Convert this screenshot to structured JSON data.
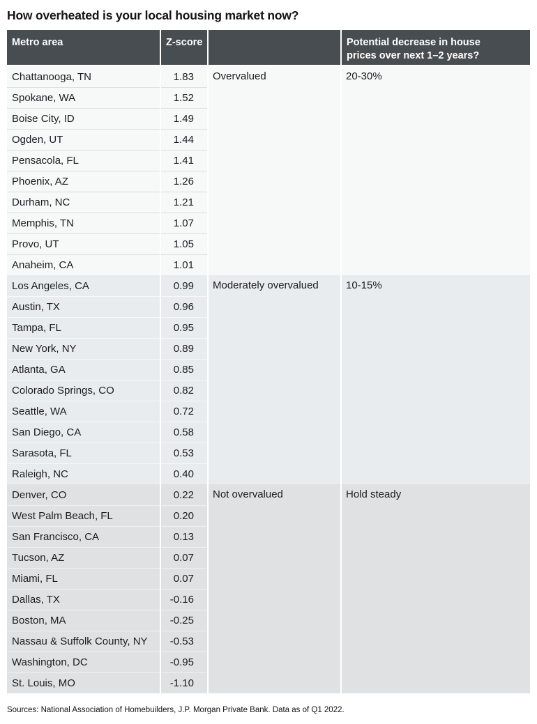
{
  "colors": {
    "header_bg": "#484d52",
    "header_text": "#ffffff",
    "body_text": "#1a1c1e",
    "section_backgrounds": [
      "#f7f8f8",
      "#e8ecee",
      "#e0e1e2"
    ]
  },
  "chart_data": {
    "type": "table",
    "title": "How overheated is your local housing market now?",
    "headers": [
      "Metro area",
      "Z-score",
      "",
      "Potential decrease in house prices over next 1–2 years?"
    ],
    "groups": [
      {
        "valuation": "Overvalued",
        "potential_decrease": "20-30%",
        "rows": [
          {
            "metro": "Chattanooga, TN",
            "zscore": "1.83"
          },
          {
            "metro": "Spokane, WA",
            "zscore": "1.52"
          },
          {
            "metro": "Boise City, ID",
            "zscore": "1.49"
          },
          {
            "metro": "Ogden, UT",
            "zscore": "1.44"
          },
          {
            "metro": "Pensacola, FL",
            "zscore": "1.41"
          },
          {
            "metro": "Phoenix, AZ",
            "zscore": "1.26"
          },
          {
            "metro": "Durham, NC",
            "zscore": "1.21"
          },
          {
            "metro": "Memphis, TN",
            "zscore": "1.07"
          },
          {
            "metro": "Provo, UT",
            "zscore": "1.05"
          },
          {
            "metro": "Anaheim, CA",
            "zscore": "1.01"
          }
        ]
      },
      {
        "valuation": "Moderately overvalued",
        "potential_decrease": "10-15%",
        "rows": [
          {
            "metro": "Los Angeles, CA",
            "zscore": "0.99"
          },
          {
            "metro": "Austin, TX",
            "zscore": "0.96"
          },
          {
            "metro": "Tampa, FL",
            "zscore": "0.95"
          },
          {
            "metro": "New York, NY",
            "zscore": "0.89"
          },
          {
            "metro": "Atlanta, GA",
            "zscore": "0.85"
          },
          {
            "metro": "Colorado Springs, CO",
            "zscore": "0.82"
          },
          {
            "metro": "Seattle, WA",
            "zscore": "0.72"
          },
          {
            "metro": "San Diego, CA",
            "zscore": "0.58"
          },
          {
            "metro": "Sarasota, FL",
            "zscore": "0.53"
          },
          {
            "metro": "Raleigh, NC",
            "zscore": "0.40"
          }
        ]
      },
      {
        "valuation": "Not overvalued",
        "potential_decrease": "Hold steady",
        "rows": [
          {
            "metro": "Denver, CO",
            "zscore": "0.22"
          },
          {
            "metro": "West Palm Beach, FL",
            "zscore": "0.20"
          },
          {
            "metro": "San Francisco, CA",
            "zscore": "0.13"
          },
          {
            "metro": "Tucson, AZ",
            "zscore": "0.07"
          },
          {
            "metro": "Miami, FL",
            "zscore": "0.07"
          },
          {
            "metro": "Dallas, TX",
            "zscore": "-0.16"
          },
          {
            "metro": "Boston, MA",
            "zscore": "-0.25"
          },
          {
            "metro": "Nassau & Suffolk County, NY",
            "zscore": "-0.53"
          },
          {
            "metro": "Washington, DC",
            "zscore": "-0.95"
          },
          {
            "metro": "St. Louis, MO",
            "zscore": "-1.10"
          }
        ]
      }
    ],
    "source_note": "Sources: National Association of Homebuilders, J.P. Morgan Private Bank. Data as of Q1 2022."
  }
}
